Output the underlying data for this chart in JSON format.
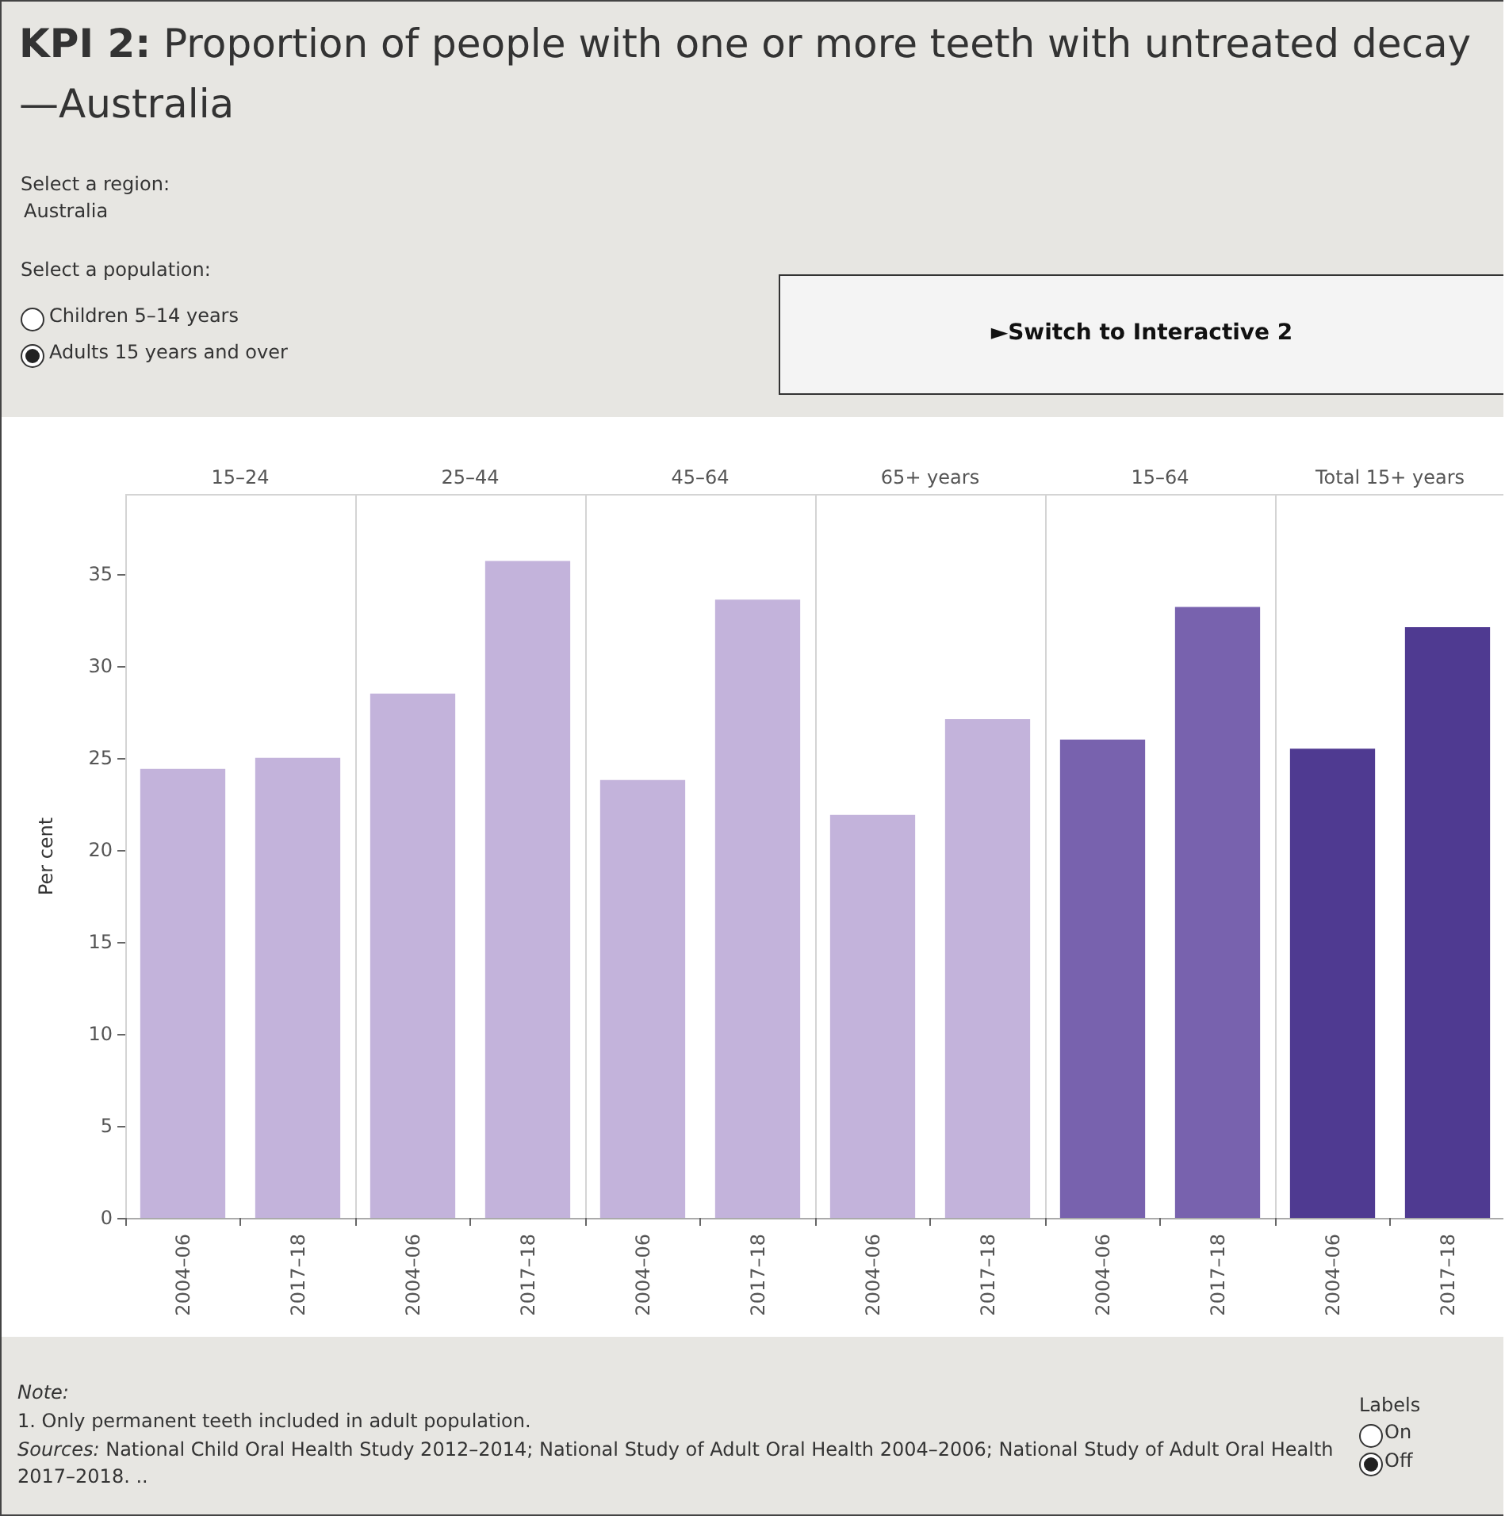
{
  "chart_data": {
    "type": "bar",
    "title": "KPI 2: Proportion of people with one or more teeth with untreated decay—Australia",
    "ylabel": "Per cent",
    "categories": [
      "2004–06",
      "2017–18",
      "2004–06",
      "2017–18",
      "2004–06",
      "2017–18",
      "2004–06",
      "2017–18",
      "2004–06",
      "2017–18",
      "2004–06",
      "2017–18"
    ],
    "values": [
      24.4,
      25.0,
      28.5,
      35.7,
      23.8,
      33.6,
      21.9,
      27.1,
      26.0,
      33.2,
      25.5,
      32.1
    ],
    "colors": [
      "#c3b3db",
      "#c3b3db",
      "#c3b3db",
      "#c3b3db",
      "#c3b3db",
      "#c3b3db",
      "#c3b3db",
      "#c3b3db",
      "#7862ae",
      "#7862ae",
      "#4f3a91",
      "#4f3a91"
    ],
    "ylim": [
      0,
      39.3
    ],
    "yticks": [
      0,
      5,
      10,
      15,
      20,
      25,
      30,
      35
    ],
    "grid": "x",
    "annotations": [
      "15–24",
      "25–44",
      "45–64",
      "65+ years",
      "15–64",
      "Total 15+ years",
      "Select a region:",
      "Australia",
      "Select a population:",
      "Children 5–14 years",
      "Adults 15 years and over",
      "►Switch to Interactive 2",
      "Note:",
      "1. Only permanent teeth included in adult population.",
      "Sources: National Child Oral Health Study 2012–2014; National Study of Adult Oral Health 2004–2006; National Study of Adult Oral Health 2017–2018. ..",
      "Labels",
      "On",
      "Off"
    ]
  }
}
